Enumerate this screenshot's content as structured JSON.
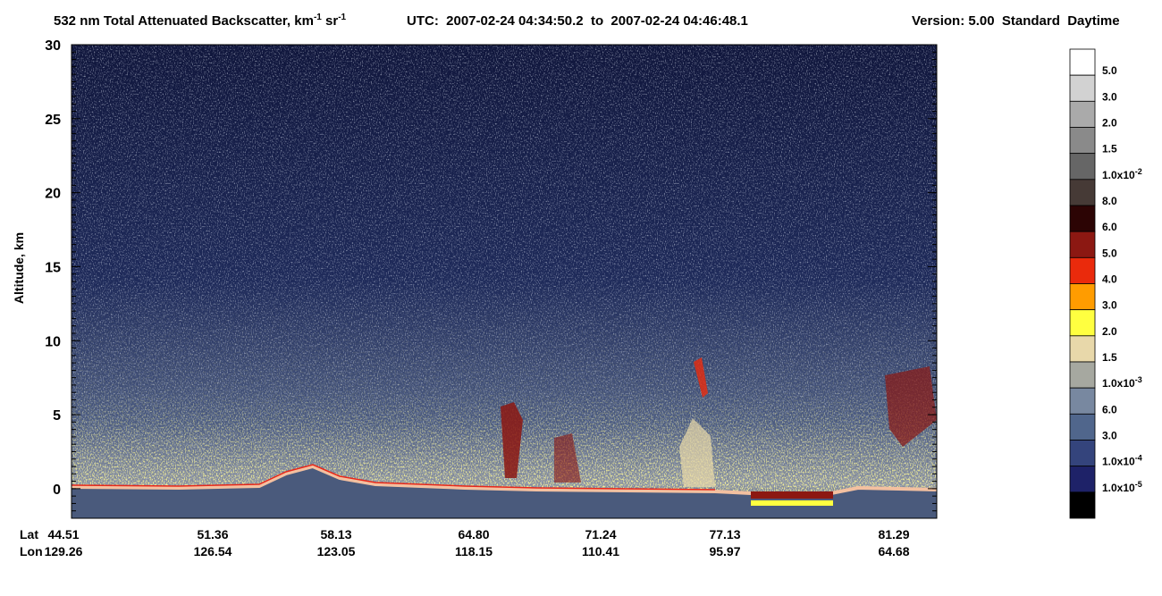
{
  "chart_data": {
    "type": "heatmap",
    "title": [
      "532 nm Total Attenuated Backscatter, km",
      "-1",
      " sr",
      "-1"
    ],
    "time_range": "UTC:  2007-02-24 04:34:50.2  to  2007-02-24 04:46:48.1",
    "version": "Version: 5.00  Standard  Daytime",
    "y_label": "Altitude, km",
    "ylim": [
      -2,
      30
    ],
    "yticks": [
      0,
      5,
      10,
      15,
      20,
      25,
      30
    ],
    "x_row_labels": [
      "Lat",
      "Lon"
    ],
    "lat": [
      "44.51",
      "51.36",
      "58.13",
      "64.80",
      "71.24",
      "77.13",
      "81.29"
    ],
    "lon": [
      "129.26",
      "126.54",
      "123.05",
      "118.15",
      "110.41",
      "95.97",
      "64.68"
    ],
    "colorbar": {
      "colors": [
        "#ffffff",
        "#d2d2d2",
        "#aaaaaa",
        "#8a8a8a",
        "#666666",
        "#463a36",
        "#2c0404",
        "#8c1812",
        "#ea2a0c",
        "#ff9c00",
        "#ffff40",
        "#e8d8aa",
        "#a6a8a0",
        "#7888a0",
        "#50668c",
        "#34447c",
        "#1e2268",
        "#000000"
      ],
      "labels": [
        "5.0",
        "3.0",
        "2.0",
        "1.5",
        [
          "1.0x10",
          "-2"
        ],
        "8.0",
        "6.0",
        "5.0",
        "4.0",
        "3.0",
        "2.0",
        "1.5",
        [
          "1.0x10",
          "-3"
        ],
        "6.0",
        "3.0",
        [
          "1.0x10",
          "-4"
        ],
        [
          "1.0x10",
          "-5"
        ]
      ]
    }
  }
}
